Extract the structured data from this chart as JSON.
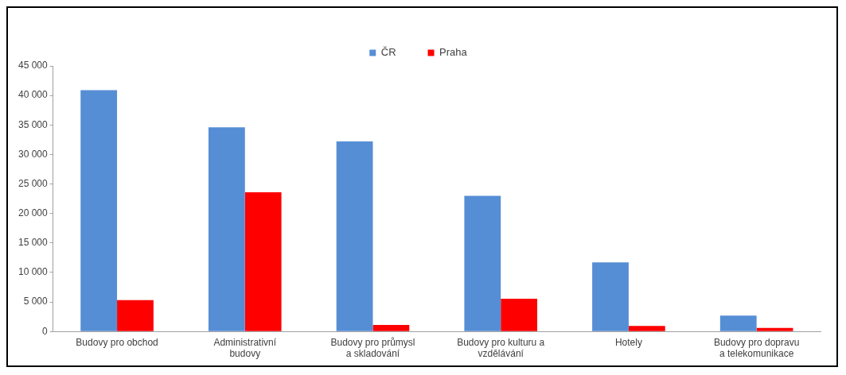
{
  "chart_data": {
    "type": "bar",
    "categories": [
      "Budovy pro obchod",
      "Administrativní budovy",
      "Budovy pro průmysl a skladování",
      "Budovy pro kulturu a vzdělávání",
      "Hotely",
      "Budovy pro dopravu a telekomunikace"
    ],
    "series": [
      {
        "name": "ČR",
        "color": "#558ed5",
        "values": [
          40900,
          34600,
          32200,
          23000,
          11700,
          2700
        ]
      },
      {
        "name": "Praha",
        "color": "#ff0000",
        "values": [
          5300,
          23600,
          1100,
          5550,
          950,
          600
        ]
      }
    ],
    "ylim": [
      0,
      45000
    ],
    "yticks": [
      0,
      {
        "value": 5000,
        "label": "5 000"
      },
      {
        "value": 10000,
        "label": "10 000"
      },
      {
        "value": 15000,
        "label": "15 000"
      },
      {
        "value": 20000,
        "label": "20 000"
      },
      {
        "value": 25000,
        "label": "25 000"
      },
      {
        "value": 30000,
        "label": "30 000"
      },
      {
        "value": 35000,
        "label": "35 000"
      },
      {
        "value": 40000,
        "label": "40 000"
      },
      {
        "value": 45000,
        "label": "45 000"
      }
    ],
    "grid": false,
    "legend": "top"
  }
}
